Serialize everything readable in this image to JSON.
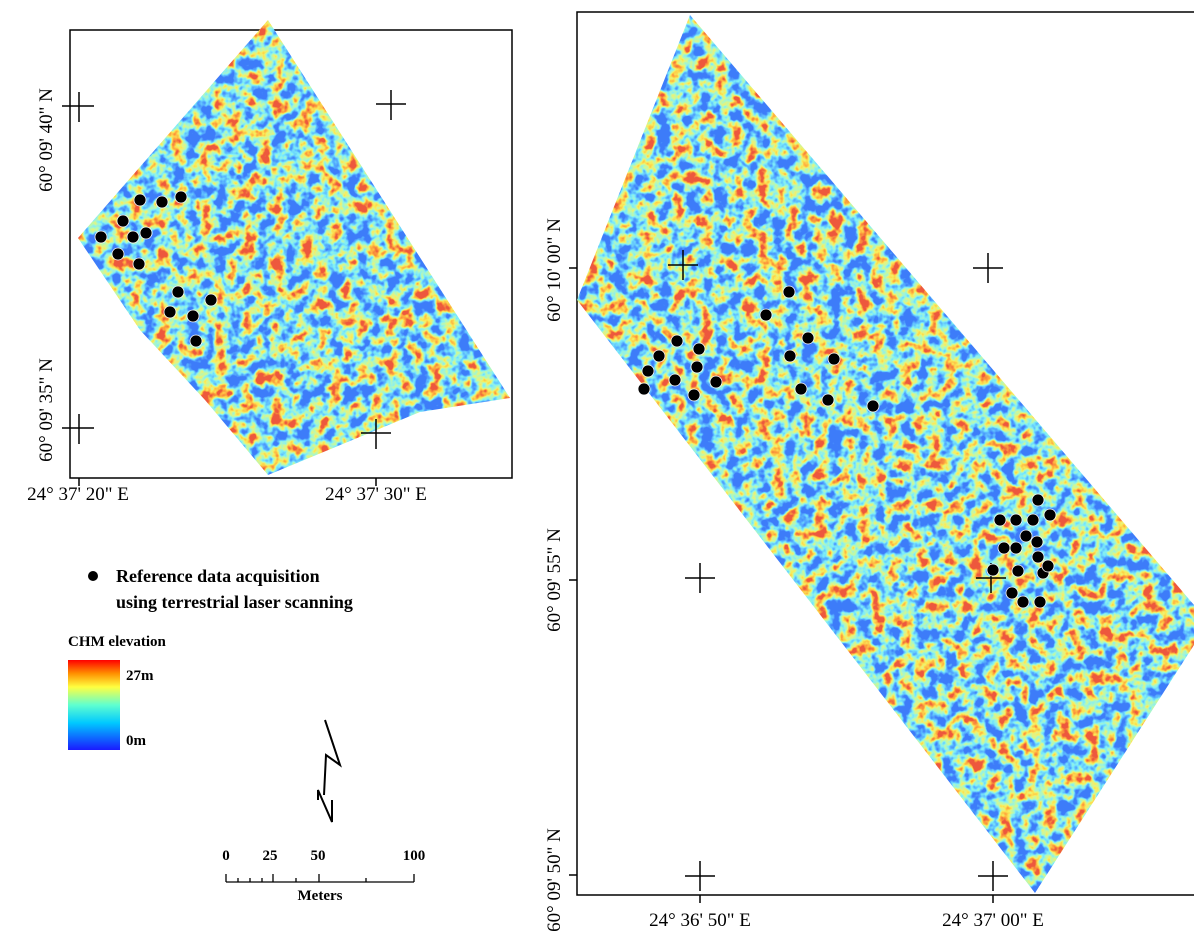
{
  "left_map": {
    "lat_labels": [
      "60° 09' 40\" N",
      "60° 09' 35\" N"
    ],
    "lon_labels": [
      "24° 37' 20\" E",
      "24° 37' 30\" E"
    ]
  },
  "right_map": {
    "lat_labels": [
      "60° 10' 00\" N",
      "60° 09' 55\" N",
      "60° 09' 50\" N"
    ],
    "lon_labels": [
      "24° 36' 50\" E",
      "24° 37' 00\" E"
    ]
  },
  "legend": {
    "points": [
      "Reference data acquisition",
      "using terrestrial laser scanning"
    ],
    "chm_title": "CHM elevation",
    "chm_max": "27m",
    "chm_min": "0m"
  },
  "scale_bar": {
    "ticks": [
      "0",
      "25",
      "50",
      "100"
    ],
    "unit": "Meters"
  }
}
